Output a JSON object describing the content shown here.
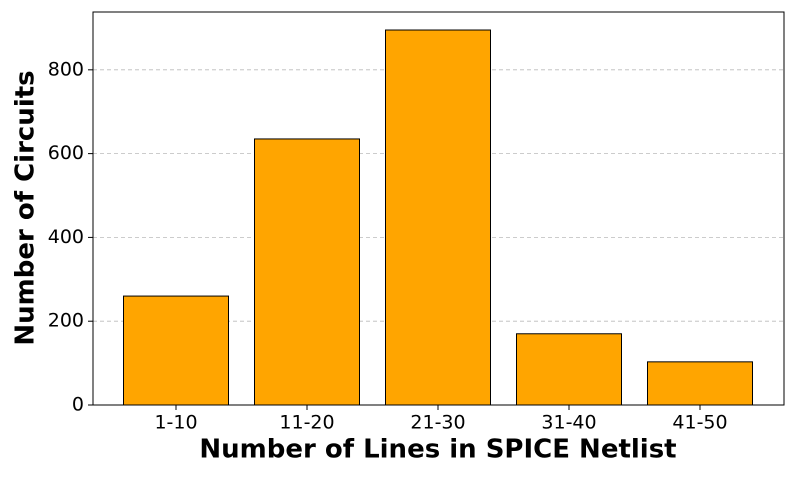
{
  "chart_data": {
    "type": "bar",
    "xlabel": "Number of Lines in SPICE Netlist",
    "ylabel": "Number of Circuits",
    "categories": [
      "1-10",
      "11-20",
      "21-30",
      "31-40",
      "41-50"
    ],
    "values": [
      260,
      635,
      895,
      170,
      103
    ],
    "color": "#ffa500",
    "ylim": [
      0,
      938
    ],
    "yticks": [
      0,
      200,
      400,
      600,
      800
    ],
    "grid": true
  }
}
